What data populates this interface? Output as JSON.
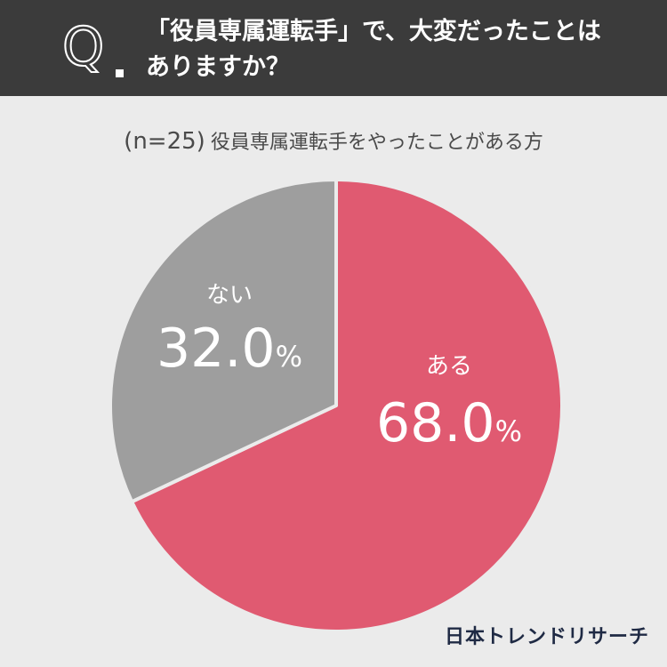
{
  "header": {
    "question_mark": "Q",
    "line1": "「役員専属運転手」で、大変だったことは",
    "line2": "ありますか？"
  },
  "subtitle": {
    "n_label": "(n=25)",
    "text": "役員専属運転手をやったことがある方"
  },
  "chart_data": {
    "type": "pie",
    "start": "12 o'clock",
    "direction": "clockwise",
    "slices": [
      {
        "label": "ある",
        "value": 68.0,
        "display": "68.0",
        "unit": "%",
        "color": "#e05a71"
      },
      {
        "label": "ない",
        "value": 32.0,
        "display": "32.0",
        "unit": "%",
        "color": "#9e9e9e"
      }
    ]
  },
  "brand": "日本トレンドリサーチ"
}
